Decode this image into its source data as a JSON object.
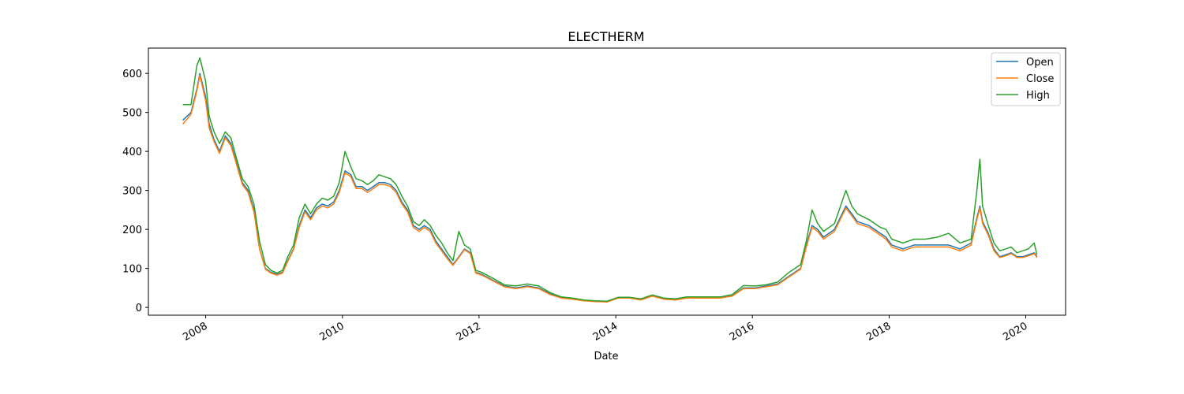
{
  "chart_data": {
    "type": "line",
    "title": "ELECTHERM",
    "xlabel": "Date",
    "ylabel": "",
    "xlim": [
      "2007-03-01",
      "2020-08-01"
    ],
    "ylim": [
      -20,
      665
    ],
    "x_ticks": [
      "2008",
      "2010",
      "2012",
      "2014",
      "2016",
      "2018",
      "2020"
    ],
    "y_ticks": [
      0,
      100,
      200,
      300,
      400,
      500,
      600
    ],
    "grid": false,
    "legend_position": "top-right",
    "dates": [
      "2007-09-01",
      "2007-10-15",
      "2007-11-15",
      "2007-12-01",
      "2008-01-01",
      "2008-01-20",
      "2008-02-15",
      "2008-03-15",
      "2008-04-15",
      "2008-05-15",
      "2008-06-15",
      "2008-07-15",
      "2008-08-15",
      "2008-09-15",
      "2008-10-15",
      "2008-11-15",
      "2008-12-15",
      "2009-01-15",
      "2009-02-15",
      "2009-03-15",
      "2009-04-15",
      "2009-05-15",
      "2009-06-15",
      "2009-07-15",
      "2009-08-15",
      "2009-09-15",
      "2009-10-15",
      "2009-11-15",
      "2009-12-15",
      "2010-01-15",
      "2010-02-15",
      "2010-03-15",
      "2010-04-15",
      "2010-05-15",
      "2010-06-15",
      "2010-07-15",
      "2010-08-15",
      "2010-09-15",
      "2010-10-15",
      "2010-11-15",
      "2010-12-15",
      "2011-01-15",
      "2011-02-15",
      "2011-03-15",
      "2011-04-15",
      "2011-05-15",
      "2011-06-15",
      "2011-07-15",
      "2011-08-15",
      "2011-09-15",
      "2011-10-15",
      "2011-11-15",
      "2011-12-15",
      "2012-01-15",
      "2012-03-15",
      "2012-05-15",
      "2012-07-15",
      "2012-09-15",
      "2012-11-15",
      "2013-01-15",
      "2013-03-15",
      "2013-05-15",
      "2013-07-15",
      "2013-09-15",
      "2013-11-15",
      "2014-01-15",
      "2014-03-15",
      "2014-05-15",
      "2014-07-15",
      "2014-09-15",
      "2014-11-15",
      "2015-01-15",
      "2015-03-15",
      "2015-05-15",
      "2015-07-15",
      "2015-09-15",
      "2015-11-15",
      "2016-01-15",
      "2016-03-15",
      "2016-05-15",
      "2016-07-15",
      "2016-09-15",
      "2016-10-15",
      "2016-11-15",
      "2016-12-15",
      "2017-01-15",
      "2017-03-15",
      "2017-05-15",
      "2017-06-15",
      "2017-07-15",
      "2017-09-15",
      "2017-11-15",
      "2017-12-15",
      "2018-01-15",
      "2018-03-15",
      "2018-05-15",
      "2018-07-15",
      "2018-09-15",
      "2018-11-15",
      "2019-01-15",
      "2019-03-15",
      "2019-04-15",
      "2019-05-01",
      "2019-05-15",
      "2019-06-15",
      "2019-07-15",
      "2019-08-15",
      "2019-09-15",
      "2019-10-15",
      "2019-11-15",
      "2019-12-15",
      "2020-01-15",
      "2020-02-15",
      "2020-03-01"
    ],
    "series": [
      {
        "name": "Open",
        "color": "#1f77b4",
        "values": [
          480,
          500,
          560,
          600,
          540,
          470,
          430,
          400,
          440,
          420,
          370,
          320,
          300,
          250,
          150,
          100,
          90,
          85,
          90,
          120,
          150,
          210,
          250,
          230,
          255,
          265,
          260,
          270,
          300,
          350,
          340,
          310,
          310,
          300,
          310,
          320,
          320,
          315,
          300,
          270,
          250,
          210,
          200,
          210,
          200,
          170,
          150,
          130,
          110,
          130,
          150,
          140,
          90,
          85,
          70,
          55,
          50,
          55,
          50,
          35,
          25,
          22,
          18,
          16,
          15,
          25,
          25,
          20,
          30,
          22,
          20,
          25,
          25,
          25,
          25,
          30,
          50,
          50,
          55,
          60,
          80,
          100,
          160,
          210,
          200,
          180,
          200,
          260,
          240,
          220,
          210,
          190,
          180,
          160,
          150,
          160,
          160,
          160,
          160,
          150,
          165,
          230,
          260,
          220,
          190,
          150,
          130,
          135,
          140,
          130,
          130,
          135,
          140,
          130
        ]
      },
      {
        "name": "Close",
        "color": "#ff7f0e",
        "values": [
          470,
          495,
          555,
          595,
          530,
          460,
          425,
          395,
          435,
          415,
          365,
          315,
          295,
          245,
          150,
          98,
          88,
          83,
          88,
          118,
          148,
          205,
          245,
          225,
          250,
          260,
          255,
          265,
          295,
          345,
          335,
          305,
          305,
          295,
          305,
          315,
          315,
          310,
          295,
          265,
          245,
          205,
          195,
          205,
          195,
          165,
          145,
          125,
          108,
          128,
          148,
          138,
          88,
          83,
          68,
          53,
          48,
          53,
          48,
          33,
          24,
          21,
          17,
          15,
          14,
          24,
          24,
          19,
          29,
          21,
          19,
          24,
          24,
          24,
          24,
          29,
          48,
          48,
          53,
          58,
          78,
          98,
          155,
          205,
          195,
          175,
          195,
          255,
          235,
          215,
          205,
          185,
          175,
          155,
          145,
          155,
          155,
          155,
          155,
          145,
          160,
          225,
          255,
          215,
          185,
          145,
          128,
          132,
          138,
          128,
          128,
          132,
          138,
          128
        ]
      },
      {
        "name": "High",
        "color": "#2ca02c",
        "values": [
          520,
          520,
          620,
          640,
          580,
          490,
          450,
          420,
          450,
          435,
          380,
          330,
          310,
          265,
          170,
          110,
          95,
          88,
          95,
          130,
          160,
          230,
          265,
          240,
          265,
          280,
          275,
          285,
          320,
          400,
          360,
          330,
          325,
          315,
          325,
          340,
          335,
          330,
          315,
          285,
          260,
          220,
          210,
          225,
          210,
          185,
          165,
          140,
          120,
          195,
          160,
          150,
          95,
          90,
          75,
          58,
          55,
          60,
          55,
          38,
          27,
          24,
          19,
          17,
          16,
          26,
          26,
          22,
          32,
          24,
          22,
          27,
          27,
          27,
          27,
          33,
          56,
          55,
          58,
          65,
          90,
          110,
          170,
          250,
          215,
          195,
          215,
          300,
          260,
          240,
          225,
          205,
          200,
          175,
          165,
          175,
          175,
          180,
          190,
          165,
          175,
          300,
          380,
          260,
          210,
          165,
          145,
          150,
          155,
          140,
          145,
          150,
          165,
          135
        ]
      }
    ]
  }
}
